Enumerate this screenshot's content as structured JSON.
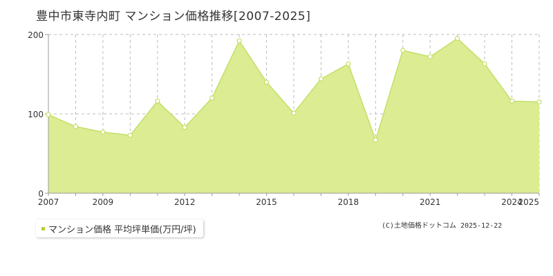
{
  "page": {
    "title": "豊中市東寺内町 マンション価格推移[2007-2025]"
  },
  "legend": {
    "label": "マンション価格 平均坪単価(万円/坪)"
  },
  "copyright": "(C)土地価格ドットコム 2025-12-22",
  "colors": {
    "fill": "#dcec93",
    "line": "#c2e065",
    "marker_fill": "#ffffff",
    "grid": "#bbbbbb",
    "axis": "#999999",
    "legend_swatch": "#b3d334"
  },
  "chart_data": {
    "type": "area",
    "x": [
      2007,
      2008,
      2009,
      2010,
      2011,
      2012,
      2013,
      2014,
      2015,
      2016,
      2017,
      2018,
      2019,
      2020,
      2021,
      2022,
      2023,
      2024,
      2025
    ],
    "series": [
      {
        "name": "マンション価格 平均坪単価(万円/坪)",
        "values": [
          99,
          84,
          77,
          73,
          116,
          83,
          120,
          192,
          140,
          101,
          144,
          163,
          67,
          180,
          172,
          195,
          163,
          116,
          115
        ]
      }
    ],
    "xlim": [
      2007,
      2025
    ],
    "ylim": [
      0,
      200
    ],
    "yticks": [
      0,
      100,
      200
    ],
    "xtick_labels": [
      "2007",
      "2009",
      "2012",
      "2015",
      "2018",
      "2021",
      "2024",
      "2025"
    ],
    "ytick_labels": [
      "0",
      "100",
      "200"
    ],
    "grid": true,
    "legend_position": "bottom-left"
  }
}
